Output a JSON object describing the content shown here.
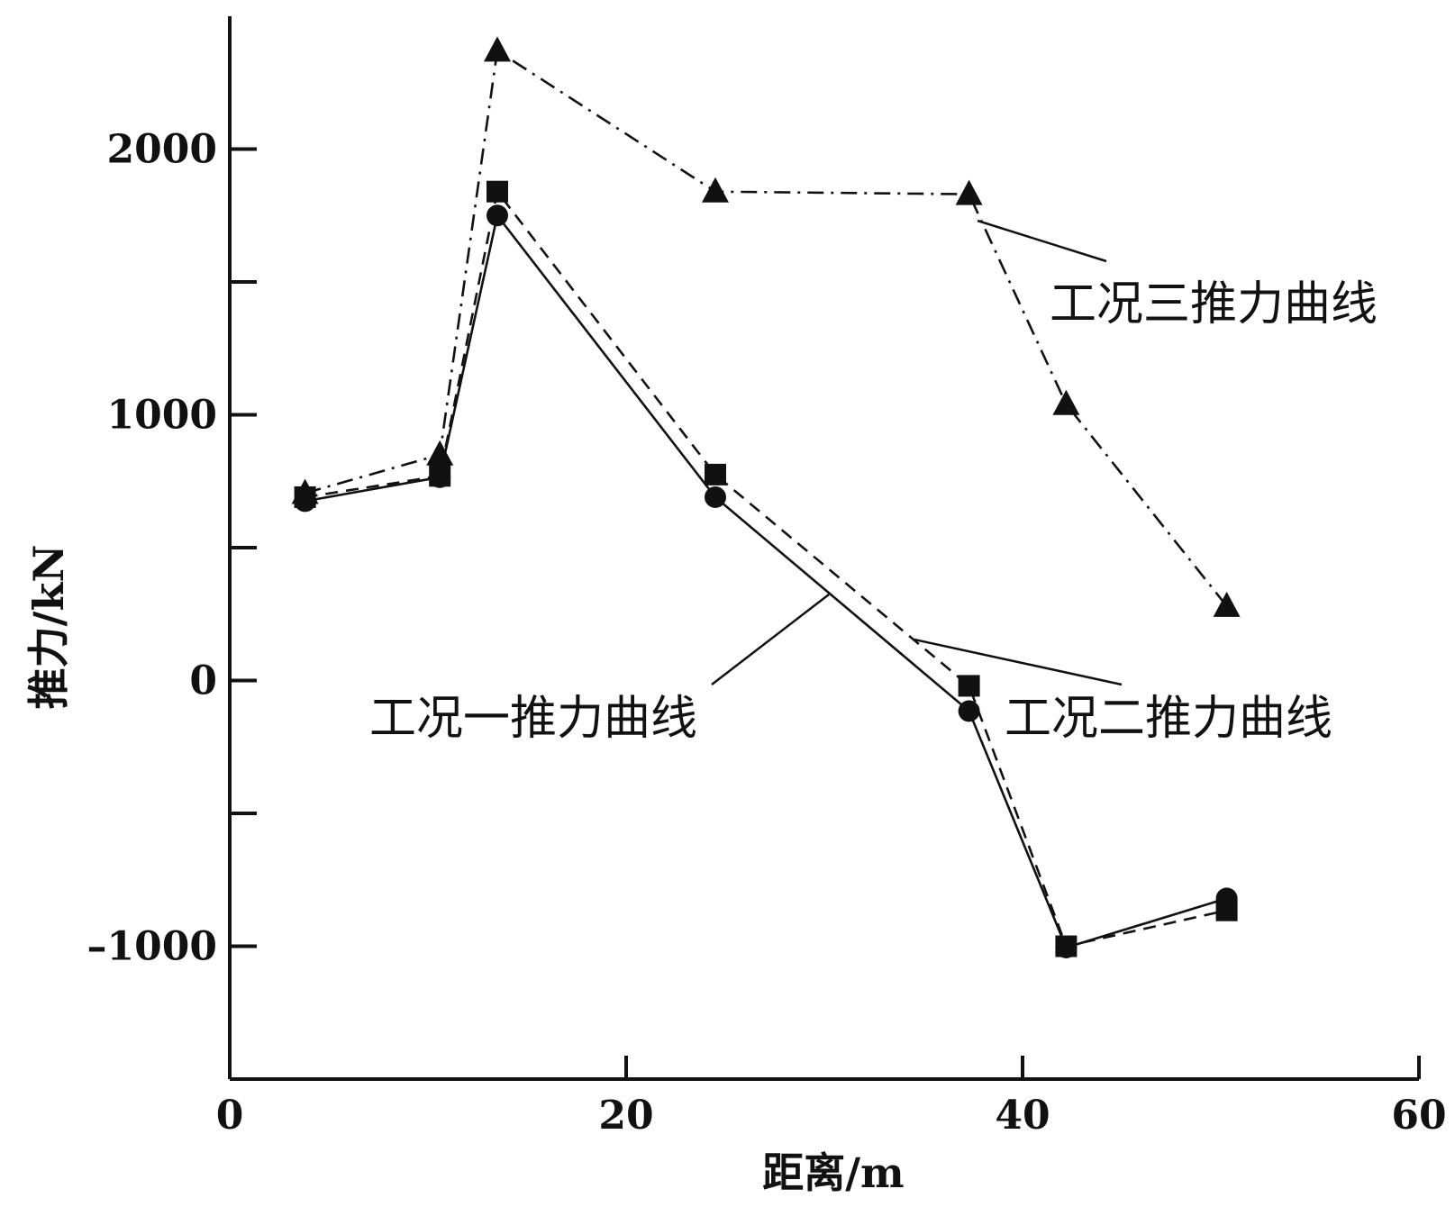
{
  "chart_data": {
    "type": "line",
    "title": "",
    "xlabel": "距离/m",
    "ylabel": "推力/kN",
    "xlim": [
      0,
      60
    ],
    "ylim": [
      -1500,
      2500
    ],
    "xticks": [
      0,
      20,
      40,
      60
    ],
    "yticks_labeled": [
      -1000,
      0,
      1000,
      2000
    ],
    "yticks_minor": [
      -500,
      500,
      1500
    ],
    "grid": false,
    "legend": "none",
    "series": [
      {
        "name": "工况一推力曲线",
        "marker": "circle",
        "dash": "solid",
        "x": [
          3.8,
          10.6,
          13.5,
          24.5,
          37.3,
          42.2,
          50.3
        ],
        "y": [
          675,
          765,
          1750,
          690,
          -115,
          -1005,
          -820
        ]
      },
      {
        "name": "工况二推力曲线",
        "marker": "square",
        "dash": "dashed",
        "x": [
          3.8,
          10.6,
          13.5,
          24.5,
          37.3,
          42.2,
          50.3
        ],
        "y": [
          690,
          770,
          1840,
          775,
          -20,
          -1000,
          -865
        ]
      },
      {
        "name": "工况三推力曲线",
        "marker": "triangle",
        "dash": "dashdot",
        "x": [
          3.8,
          10.6,
          13.5,
          24.5,
          37.3,
          42.2,
          50.3
        ],
        "y": [
          705,
          850,
          2370,
          1840,
          1830,
          1040,
          280
        ]
      }
    ],
    "annotations": [
      {
        "text": "工况三推力曲线",
        "series_index": 2
      },
      {
        "text": "工况一推力曲线",
        "series_index": 0
      },
      {
        "text": "工况二推力曲线",
        "series_index": 1
      }
    ]
  }
}
